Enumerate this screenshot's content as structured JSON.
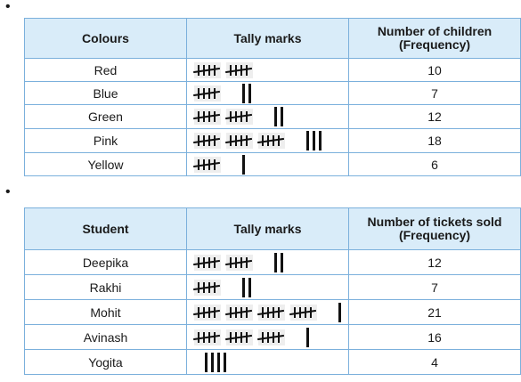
{
  "tables": [
    {
      "headers": {
        "label": "Colours",
        "tally": "Tally marks",
        "freq_line1": "Number of children",
        "freq_line2": "(Frequency)"
      },
      "rows": [
        {
          "label": "Red",
          "count": "10",
          "tally": 10
        },
        {
          "label": "Blue",
          "count": "7",
          "tally": 7
        },
        {
          "label": "Green",
          "count": "12",
          "tally": 12
        },
        {
          "label": "Pink",
          "count": "18",
          "tally": 18
        },
        {
          "label": "Yellow",
          "count": "6",
          "tally": 6
        }
      ]
    },
    {
      "headers": {
        "label": "Student",
        "tally": "Tally marks",
        "freq_line1": "Number of tickets sold",
        "freq_line2": "(Frequency)"
      },
      "rows": [
        {
          "label": "Deepika",
          "count": "12",
          "tally": 12
        },
        {
          "label": "Rakhi",
          "count": "7",
          "tally": 7
        },
        {
          "label": "Mohit",
          "count": "21",
          "tally": 21
        },
        {
          "label": "Avinash",
          "count": "16",
          "tally": 16
        },
        {
          "label": "Yogita",
          "count": "4",
          "tally": 4
        }
      ]
    }
  ]
}
